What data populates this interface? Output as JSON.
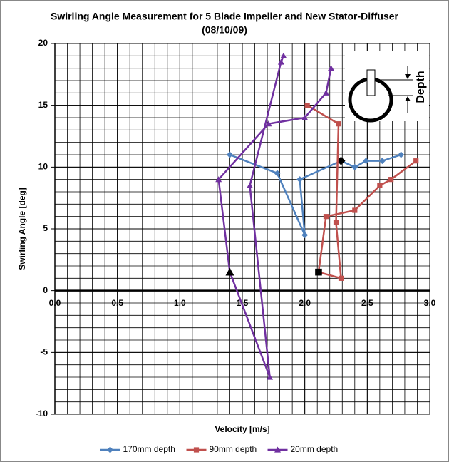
{
  "chart_data": {
    "type": "line",
    "title": "Swirling Angle Measurement for 5 Blade Impeller and New Stator-Diffuser",
    "subtitle": "(08/10/09)",
    "x_label": "Velocity [m/s]",
    "y_label": "Swirling Angle [deg]",
    "inset_label": "Depth",
    "xlim": [
      0,
      3
    ],
    "ylim": [
      -10,
      20
    ],
    "xticks": [
      {
        "value": 0,
        "label": "0.0"
      },
      {
        "value": 0.5,
        "label": "0.5"
      },
      {
        "value": 1,
        "label": "1.0"
      },
      {
        "value": 1.5,
        "label": "1.5"
      },
      {
        "value": 2,
        "label": "2.0"
      },
      {
        "value": 2.5,
        "label": "2.5"
      },
      {
        "value": 3,
        "label": "3.0"
      }
    ],
    "yticks": [
      -10,
      -5,
      0,
      5,
      10,
      15,
      20
    ],
    "grid": true,
    "x_minor_step": 0.1,
    "y_minor_step": 1,
    "legend": "bottom",
    "series": [
      {
        "name": "170mm depth",
        "color": "#4f81bd",
        "marker": "diamond",
        "highlight": {
          "index": 4,
          "color": "#000000"
        },
        "x": [
          1.4,
          1.78,
          2.0,
          1.96,
          2.29,
          2.4,
          2.49,
          2.62,
          2.77
        ],
        "values": [
          11,
          9.5,
          4.5,
          9,
          10.5,
          10,
          10.5,
          10.5,
          11
        ]
      },
      {
        "name": "90mm depth",
        "color": "#c0504d",
        "marker": "square",
        "highlight": {
          "index": 4,
          "color": "#000000"
        },
        "x": [
          2.02,
          2.27,
          2.25,
          2.29,
          2.11,
          2.17,
          2.4,
          2.6,
          2.69,
          2.89
        ],
        "values": [
          15,
          13.5,
          5.5,
          1,
          1.5,
          6,
          6.5,
          8.5,
          9,
          10.5
        ]
      },
      {
        "name": "20mm depth",
        "color": "#7030a0",
        "marker": "triangle",
        "highlight": {
          "index": 5,
          "color": "#000000"
        },
        "x": [
          2.21,
          2.17,
          2.0,
          1.71,
          1.31,
          1.4,
          1.72,
          1.56,
          1.81,
          1.83
        ],
        "values": [
          18,
          16,
          14,
          13.5,
          9,
          1.5,
          -7,
          8.5,
          18.5,
          19
        ]
      }
    ]
  }
}
